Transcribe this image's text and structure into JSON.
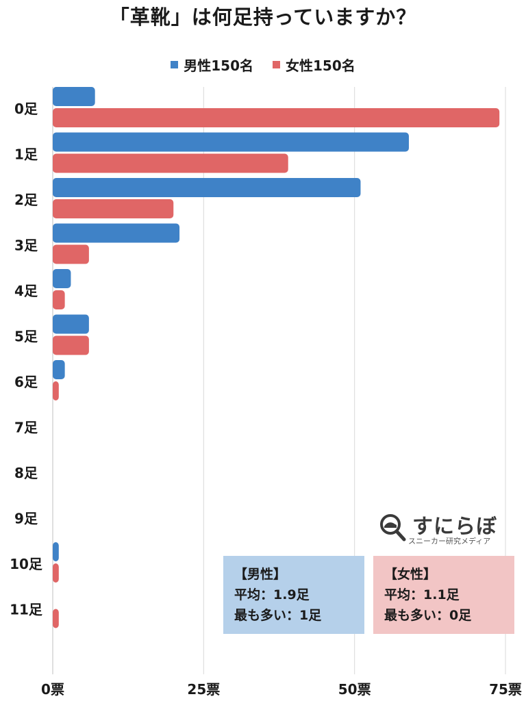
{
  "chart_data": {
    "type": "bar",
    "orientation": "horizontal",
    "title": "「革靴」は何足持っていますか？",
    "categories": [
      "0足",
      "1足",
      "2足",
      "3足",
      "4足",
      "5足",
      "6足",
      "7足",
      "8足",
      "9足",
      "10足",
      "11足"
    ],
    "series": [
      {
        "name": "男性150名",
        "color": "#3f82c7",
        "values": [
          7,
          59,
          51,
          21,
          3,
          6,
          2,
          0,
          0,
          0,
          1,
          0
        ]
      },
      {
        "name": "女性150名",
        "color": "#e06666",
        "values": [
          74,
          39,
          20,
          6,
          2,
          6,
          1,
          0,
          0,
          0,
          1,
          1
        ]
      }
    ],
    "x_ticks": [
      "0票",
      "25票",
      "50票",
      "75票"
    ],
    "x_tick_values": [
      0,
      25,
      50,
      75
    ],
    "xlim": [
      0,
      75
    ],
    "grid": "vertical",
    "legend_position": "top-center"
  },
  "stats": {
    "male": {
      "header": "【男性】",
      "average": "平均：1.9足",
      "most": "最も多い：1足"
    },
    "female": {
      "header": "【女性】",
      "average": "平均：1.1足",
      "most": "最も多い：0足"
    }
  },
  "logo": {
    "name": "すにらぼ",
    "tagline": "スニーカー研究メディア"
  }
}
